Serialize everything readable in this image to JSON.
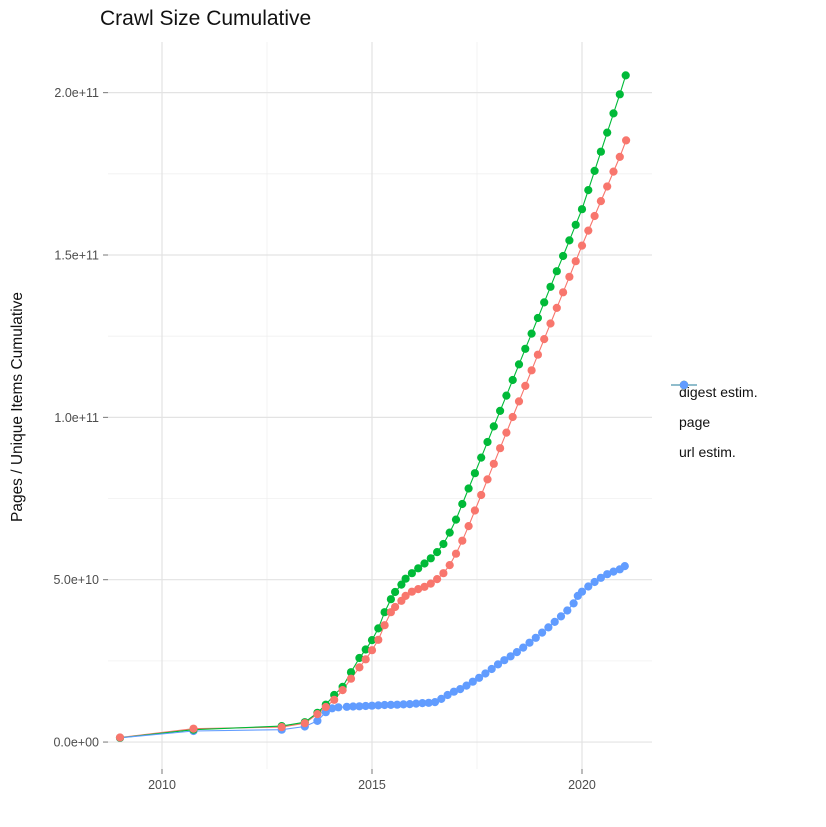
{
  "chart_data": {
    "type": "line",
    "title": "Crawl Size Cumulative",
    "xlabel": "",
    "ylabel": "Pages / Unique Items Cumulative",
    "unit": "cumulative pages / unique items, billions (1e9)",
    "x_ticks": [
      {
        "value": 2010,
        "label": "2010"
      },
      {
        "value": 2015,
        "label": "2015"
      },
      {
        "value": 2020,
        "label": "2020"
      }
    ],
    "y_ticks": [
      {
        "value": 0,
        "label": "0.0e+00"
      },
      {
        "value": 50,
        "label": "5.0e+10"
      },
      {
        "value": 100,
        "label": "1.0e+11"
      },
      {
        "value": 150,
        "label": "1.5e+11"
      },
      {
        "value": 200,
        "label": "2.0e+11"
      }
    ],
    "x_minor": [
      2012.5,
      2017.5
    ],
    "y_minor": [
      25,
      75,
      125,
      175
    ],
    "layout": {
      "panel": {
        "l": 108,
        "t": 42,
        "r": 652,
        "b": 769
      },
      "x_domain": [
        2008.714,
        2021.667
      ],
      "y_domain": [
        -8.3,
        215.6
      ],
      "grid": "major+minor, light grey on white",
      "legend_position": "right"
    },
    "legend": {
      "items": [
        {
          "label": "digest estim.",
          "color": "#F8766D"
        },
        {
          "label": "page",
          "color": "#00BA38"
        },
        {
          "label": "url estim.",
          "color": "#619CFF"
        }
      ]
    },
    "series": [
      {
        "name": "digest estim.",
        "color": "#F8766D",
        "points": [
          [
            2009.0,
            1.4
          ],
          [
            2010.75,
            4.1
          ],
          [
            2012.85,
            4.6
          ],
          [
            2013.4,
            5.8
          ],
          [
            2013.7,
            8.6
          ],
          [
            2013.9,
            10.8
          ],
          [
            2014.1,
            13.0
          ],
          [
            2014.3,
            16.0
          ],
          [
            2014.5,
            19.5
          ],
          [
            2014.7,
            23.0
          ],
          [
            2014.85,
            25.5
          ],
          [
            2015.0,
            28.3
          ],
          [
            2015.15,
            31.5
          ],
          [
            2015.3,
            36.0
          ],
          [
            2015.45,
            40.0
          ],
          [
            2015.55,
            41.6
          ],
          [
            2015.7,
            43.5
          ],
          [
            2015.8,
            45.0
          ],
          [
            2015.95,
            46.3
          ],
          [
            2016.1,
            47.1
          ],
          [
            2016.25,
            47.8
          ],
          [
            2016.4,
            48.8
          ],
          [
            2016.55,
            50.2
          ],
          [
            2016.7,
            52.0
          ],
          [
            2016.85,
            54.5
          ],
          [
            2017.0,
            58.0
          ],
          [
            2017.15,
            62.0
          ],
          [
            2017.3,
            66.5
          ],
          [
            2017.45,
            71.3
          ],
          [
            2017.6,
            76.1
          ],
          [
            2017.75,
            80.9
          ],
          [
            2017.9,
            85.7
          ],
          [
            2018.05,
            90.5
          ],
          [
            2018.2,
            95.3
          ],
          [
            2018.35,
            100.1
          ],
          [
            2018.5,
            104.9
          ],
          [
            2018.65,
            109.7
          ],
          [
            2018.8,
            114.5
          ],
          [
            2018.95,
            119.3
          ],
          [
            2019.1,
            124.1
          ],
          [
            2019.25,
            128.9
          ],
          [
            2019.4,
            133.7
          ],
          [
            2019.55,
            138.5
          ],
          [
            2019.7,
            143.3
          ],
          [
            2019.85,
            148.1
          ],
          [
            2020.0,
            152.9
          ],
          [
            2020.15,
            157.5
          ],
          [
            2020.3,
            162.0
          ],
          [
            2020.45,
            166.6
          ],
          [
            2020.6,
            171.1
          ],
          [
            2020.75,
            175.7
          ],
          [
            2020.9,
            180.2
          ],
          [
            2021.05,
            185.3
          ]
        ]
      },
      {
        "name": "page",
        "color": "#00BA38",
        "points": [
          [
            2009.0,
            1.3
          ],
          [
            2010.75,
            3.8
          ],
          [
            2012.85,
            4.9
          ],
          [
            2013.4,
            6.1
          ],
          [
            2013.7,
            9.0
          ],
          [
            2013.9,
            11.5
          ],
          [
            2014.1,
            14.5
          ],
          [
            2014.3,
            17.0
          ],
          [
            2014.5,
            21.5
          ],
          [
            2014.7,
            25.9
          ],
          [
            2014.85,
            28.5
          ],
          [
            2015.0,
            31.4
          ],
          [
            2015.15,
            35.0
          ],
          [
            2015.3,
            40.0
          ],
          [
            2015.45,
            44.0
          ],
          [
            2015.55,
            46.2
          ],
          [
            2015.7,
            48.5
          ],
          [
            2015.8,
            50.3
          ],
          [
            2015.95,
            52.0
          ],
          [
            2016.1,
            53.5
          ],
          [
            2016.25,
            55.0
          ],
          [
            2016.4,
            56.6
          ],
          [
            2016.55,
            58.5
          ],
          [
            2016.7,
            61.0
          ],
          [
            2016.85,
            64.5
          ],
          [
            2017.0,
            68.5
          ],
          [
            2017.15,
            73.3
          ],
          [
            2017.3,
            78.1
          ],
          [
            2017.45,
            82.8
          ],
          [
            2017.6,
            87.6
          ],
          [
            2017.75,
            92.4
          ],
          [
            2017.9,
            97.2
          ],
          [
            2018.05,
            102.0
          ],
          [
            2018.2,
            106.7
          ],
          [
            2018.35,
            111.5
          ],
          [
            2018.5,
            116.3
          ],
          [
            2018.65,
            121.1
          ],
          [
            2018.8,
            125.8
          ],
          [
            2018.95,
            130.6
          ],
          [
            2019.1,
            135.4
          ],
          [
            2019.25,
            140.2
          ],
          [
            2019.4,
            145.0
          ],
          [
            2019.55,
            149.7
          ],
          [
            2019.7,
            154.5
          ],
          [
            2019.85,
            159.3
          ],
          [
            2020.0,
            164.1
          ],
          [
            2020.15,
            170.0
          ],
          [
            2020.3,
            175.9
          ],
          [
            2020.45,
            181.8
          ],
          [
            2020.6,
            187.7
          ],
          [
            2020.75,
            193.6
          ],
          [
            2020.9,
            199.5
          ],
          [
            2021.04,
            205.3
          ]
        ]
      },
      {
        "name": "url estim.",
        "color": "#619CFF",
        "points": [
          [
            2009.0,
            1.3
          ],
          [
            2010.75,
            3.4
          ],
          [
            2012.85,
            3.8
          ],
          [
            2013.4,
            4.8
          ],
          [
            2013.7,
            6.5
          ],
          [
            2013.9,
            9.2
          ],
          [
            2014.05,
            10.4
          ],
          [
            2014.2,
            10.7
          ],
          [
            2014.4,
            10.85
          ],
          [
            2014.55,
            10.95
          ],
          [
            2014.7,
            11.0
          ],
          [
            2014.85,
            11.1
          ],
          [
            2015.0,
            11.2
          ],
          [
            2015.15,
            11.3
          ],
          [
            2015.3,
            11.4
          ],
          [
            2015.45,
            11.45
          ],
          [
            2015.6,
            11.5
          ],
          [
            2015.75,
            11.6
          ],
          [
            2015.9,
            11.7
          ],
          [
            2016.05,
            11.85
          ],
          [
            2016.2,
            12.0
          ],
          [
            2016.35,
            12.1
          ],
          [
            2016.5,
            12.3
          ],
          [
            2016.65,
            13.3
          ],
          [
            2016.8,
            14.5
          ],
          [
            2016.95,
            15.5
          ],
          [
            2017.1,
            16.3
          ],
          [
            2017.25,
            17.4
          ],
          [
            2017.4,
            18.6
          ],
          [
            2017.55,
            19.8
          ],
          [
            2017.7,
            21.1
          ],
          [
            2017.85,
            22.5
          ],
          [
            2018.0,
            23.9
          ],
          [
            2018.15,
            25.2
          ],
          [
            2018.3,
            26.4
          ],
          [
            2018.45,
            27.7
          ],
          [
            2018.6,
            29.1
          ],
          [
            2018.75,
            30.6
          ],
          [
            2018.9,
            32.1
          ],
          [
            2019.05,
            33.7
          ],
          [
            2019.2,
            35.3
          ],
          [
            2019.35,
            37.0
          ],
          [
            2019.5,
            38.7
          ],
          [
            2019.65,
            40.5
          ],
          [
            2019.8,
            42.7
          ],
          [
            2019.9,
            45.0
          ],
          [
            2020.0,
            46.3
          ],
          [
            2020.15,
            47.9
          ],
          [
            2020.3,
            49.3
          ],
          [
            2020.45,
            50.6
          ],
          [
            2020.6,
            51.7
          ],
          [
            2020.75,
            52.5
          ],
          [
            2020.9,
            53.2
          ],
          [
            2021.02,
            54.2
          ]
        ]
      }
    ]
  }
}
